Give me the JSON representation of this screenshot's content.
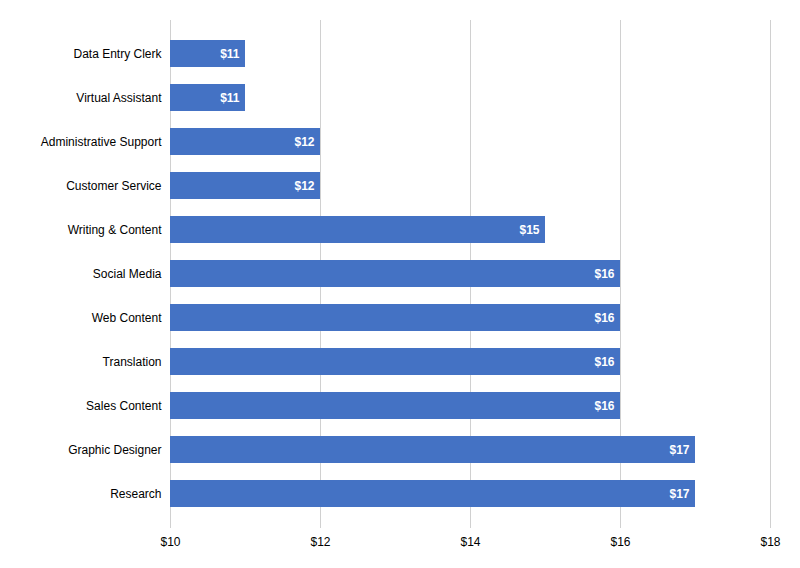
{
  "chart_data": {
    "type": "bar",
    "orientation": "horizontal",
    "categories": [
      "Research",
      "Graphic Designer",
      "Sales Content",
      "Translation",
      "Web Content",
      "Social Media",
      "Writing & Content",
      "Customer Service",
      "Administrative Support",
      "Virtual Assistant",
      "Data Entry Clerk"
    ],
    "values": [
      17,
      17,
      16,
      16,
      16,
      16,
      15,
      12,
      12,
      11,
      11
    ],
    "value_labels": [
      "$17",
      "$17",
      "$16",
      "$16",
      "$16",
      "$16",
      "$15",
      "$12",
      "$12",
      "$11",
      "$11"
    ],
    "data_labels": true,
    "color": "#4472c4",
    "xlim": [
      10,
      18
    ],
    "xticks": [
      {
        "value": 10,
        "label": "$10"
      },
      {
        "value": 12,
        "label": "$12"
      },
      {
        "value": 14,
        "label": "$14"
      },
      {
        "value": 16,
        "label": "$16"
      },
      {
        "value": 18,
        "label": "$18"
      }
    ],
    "grid": true
  }
}
